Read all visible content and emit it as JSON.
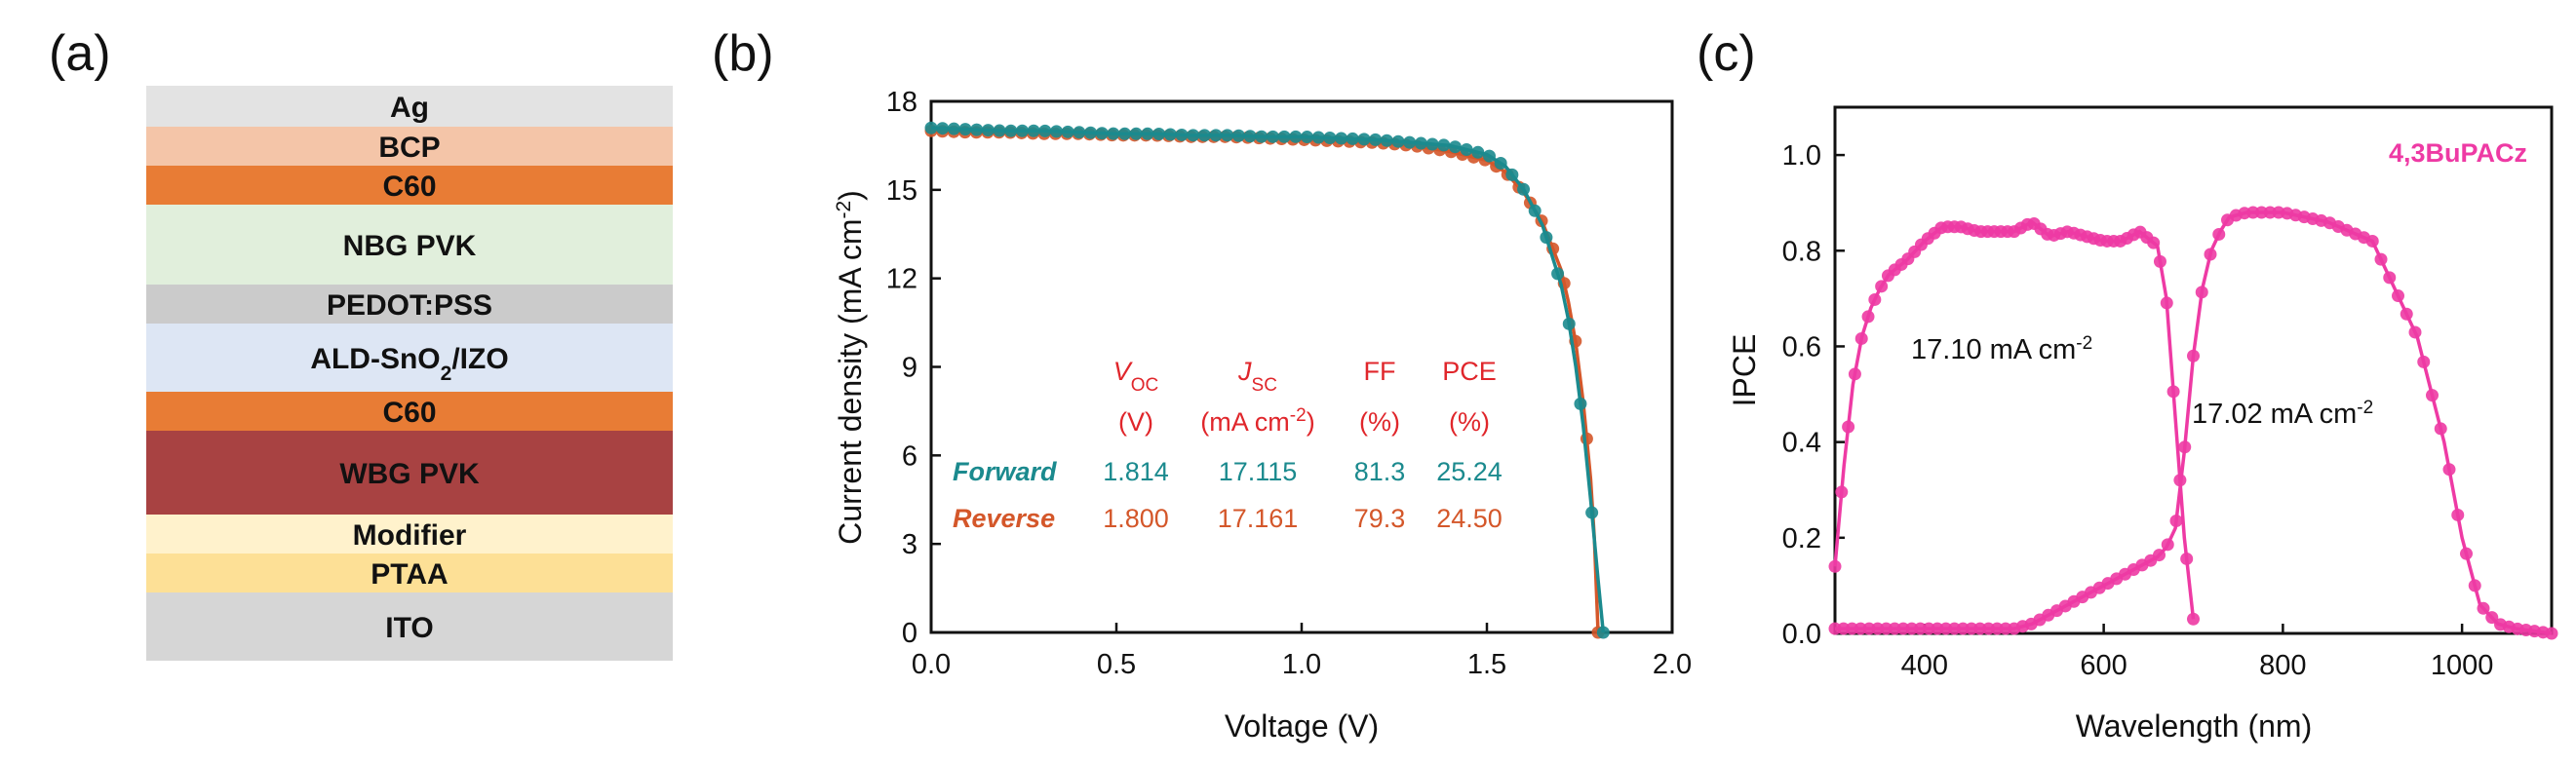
{
  "panel_labels": {
    "a": "(a)",
    "b": "(b)",
    "c": "(c)"
  },
  "colors": {
    "forward": "#1b8a8e",
    "reverse": "#d4572a",
    "ipce": "#ee3aa4",
    "header": "#e0262b"
  },
  "stack": {
    "layers": [
      {
        "name": "Ag",
        "color": "#e3e3e3"
      },
      {
        "name": "BCP",
        "color": "#f4c5a8"
      },
      {
        "name": "C60",
        "color": "#e87c35"
      },
      {
        "name": "NBG PVK",
        "color": "#e1efdc"
      },
      {
        "name": "PEDOT:PSS",
        "color": "#cbcbcb"
      },
      {
        "name": "ALD-SnO2/IZO",
        "color": "#dde6f4"
      },
      {
        "name": "C60",
        "color": "#e87c35"
      },
      {
        "name": "WBG PVK",
        "color": "#a84242"
      },
      {
        "name": "Modifier",
        "color": "#fff2cc"
      },
      {
        "name": "PTAA",
        "color": "#fde096"
      },
      {
        "name": "ITO",
        "color": "#d6d6d6"
      }
    ],
    "aldSnO2": {
      "pre": "ALD-SnO",
      "sub": "2",
      "post": "/IZO"
    }
  },
  "jv": {
    "xlabel": "Voltage (V)",
    "ylabel": {
      "main": "Current density (mA cm",
      "sup": "-2",
      "end": ")"
    },
    "xticks": [
      "0.0",
      "0.5",
      "1.0",
      "1.5",
      "2.0"
    ],
    "yticks": [
      "0",
      "3",
      "6",
      "9",
      "12",
      "15",
      "18"
    ],
    "table": {
      "voc": {
        "main": "V",
        "sub": "OC"
      },
      "voc_unit": "(V)",
      "jsc": {
        "main": "J",
        "sub": "SC"
      },
      "jsc_unit": {
        "main": "(mA cm",
        "sup": "-2",
        "end": ")"
      },
      "ff": "FF",
      "ff_unit": "(%)",
      "pce": "PCE",
      "pce_unit": "(%)",
      "rows": [
        {
          "label": "Forward",
          "voc": "1.814",
          "jsc": "17.115",
          "ff": "81.3",
          "pce": "25.24"
        },
        {
          "label": "Reverse",
          "voc": "1.800",
          "jsc": "17.161",
          "ff": "79.3",
          "pce": "24.50"
        }
      ]
    }
  },
  "ipce_panel": {
    "xlabel": "Wavelength (nm)",
    "ylabel": "IPCE",
    "xticks": [
      "400",
      "600",
      "800",
      "1000"
    ],
    "yticks": [
      "0.0",
      "0.2",
      "0.4",
      "0.6",
      "0.8",
      "1.0"
    ],
    "legend": "4,3BuPACz",
    "annot_wbg": {
      "main": "17.10 mA cm",
      "sup": "-2"
    },
    "annot_nbg": {
      "main": "17.02 mA cm",
      "sup": "-2"
    }
  },
  "chart_data": [
    {
      "type": "line",
      "xlabel": "Voltage (V)",
      "ylabel": "Current density (mA cm-2)",
      "xlim": [
        0,
        2.0
      ],
      "ylim": [
        0,
        18
      ],
      "grid": false,
      "series": [
        {
          "name": "Forward",
          "x": [
            0,
            0.1,
            0.2,
            0.3,
            0.4,
            0.5,
            0.6,
            0.7,
            0.8,
            0.9,
            1.0,
            1.1,
            1.2,
            1.3,
            1.4,
            1.5,
            1.55,
            1.6,
            1.65,
            1.7,
            1.72,
            1.74,
            1.76,
            1.78,
            1.8,
            1.814
          ],
          "y": [
            17.1,
            17.05,
            17.0,
            17.0,
            16.95,
            16.9,
            16.9,
            16.85,
            16.85,
            16.8,
            16.8,
            16.75,
            16.7,
            16.6,
            16.5,
            16.2,
            15.8,
            15.0,
            13.8,
            11.8,
            10.6,
            9.0,
            7.0,
            4.5,
            1.8,
            0
          ]
        },
        {
          "name": "Reverse",
          "x": [
            0,
            0.1,
            0.2,
            0.3,
            0.4,
            0.5,
            0.6,
            0.7,
            0.8,
            0.9,
            1.0,
            1.1,
            1.2,
            1.3,
            1.4,
            1.5,
            1.55,
            1.6,
            1.65,
            1.7,
            1.72,
            1.74,
            1.76,
            1.78,
            1.79,
            1.8
          ],
          "y": [
            17.0,
            16.95,
            16.95,
            16.9,
            16.9,
            16.85,
            16.85,
            16.8,
            16.8,
            16.75,
            16.7,
            16.65,
            16.6,
            16.5,
            16.3,
            16.0,
            15.6,
            14.9,
            13.9,
            12.3,
            11.2,
            9.8,
            7.8,
            5.2,
            3.2,
            0
          ]
        }
      ]
    },
    {
      "type": "line",
      "xlabel": "Wavelength (nm)",
      "ylabel": "IPCE",
      "xlim": [
        300,
        1100
      ],
      "ylim": [
        0,
        1.1
      ],
      "legend": "4,3BuPACz",
      "series": [
        {
          "x": [
            300,
            310,
            320,
            330,
            340,
            350,
            360,
            380,
            400,
            420,
            440,
            460,
            480,
            500,
            520,
            540,
            560,
            580,
            600,
            620,
            640,
            660,
            670,
            680,
            690,
            700
          ],
          "y": [
            0.14,
            0.35,
            0.52,
            0.62,
            0.68,
            0.72,
            0.75,
            0.78,
            0.82,
            0.85,
            0.85,
            0.84,
            0.84,
            0.84,
            0.86,
            0.83,
            0.84,
            0.83,
            0.82,
            0.82,
            0.84,
            0.81,
            0.7,
            0.45,
            0.2,
            0.03
          ]
        },
        {
          "x": [
            300,
            350,
            400,
            450,
            500,
            520,
            540,
            560,
            580,
            600,
            620,
            640,
            660,
            670,
            680,
            690,
            700,
            710,
            720,
            730,
            740,
            760,
            800,
            850,
            900,
            950,
            980,
            1000,
            1020,
            1040,
            1060,
            1080,
            1100
          ],
          "y": [
            0.01,
            0.01,
            0.01,
            0.01,
            0.01,
            0.02,
            0.04,
            0.06,
            0.08,
            0.1,
            0.12,
            0.14,
            0.16,
            0.18,
            0.22,
            0.38,
            0.58,
            0.72,
            0.8,
            0.84,
            0.87,
            0.88,
            0.88,
            0.86,
            0.82,
            0.62,
            0.4,
            0.2,
            0.06,
            0.02,
            0.01,
            0.005,
            0.0
          ]
        }
      ]
    }
  ]
}
